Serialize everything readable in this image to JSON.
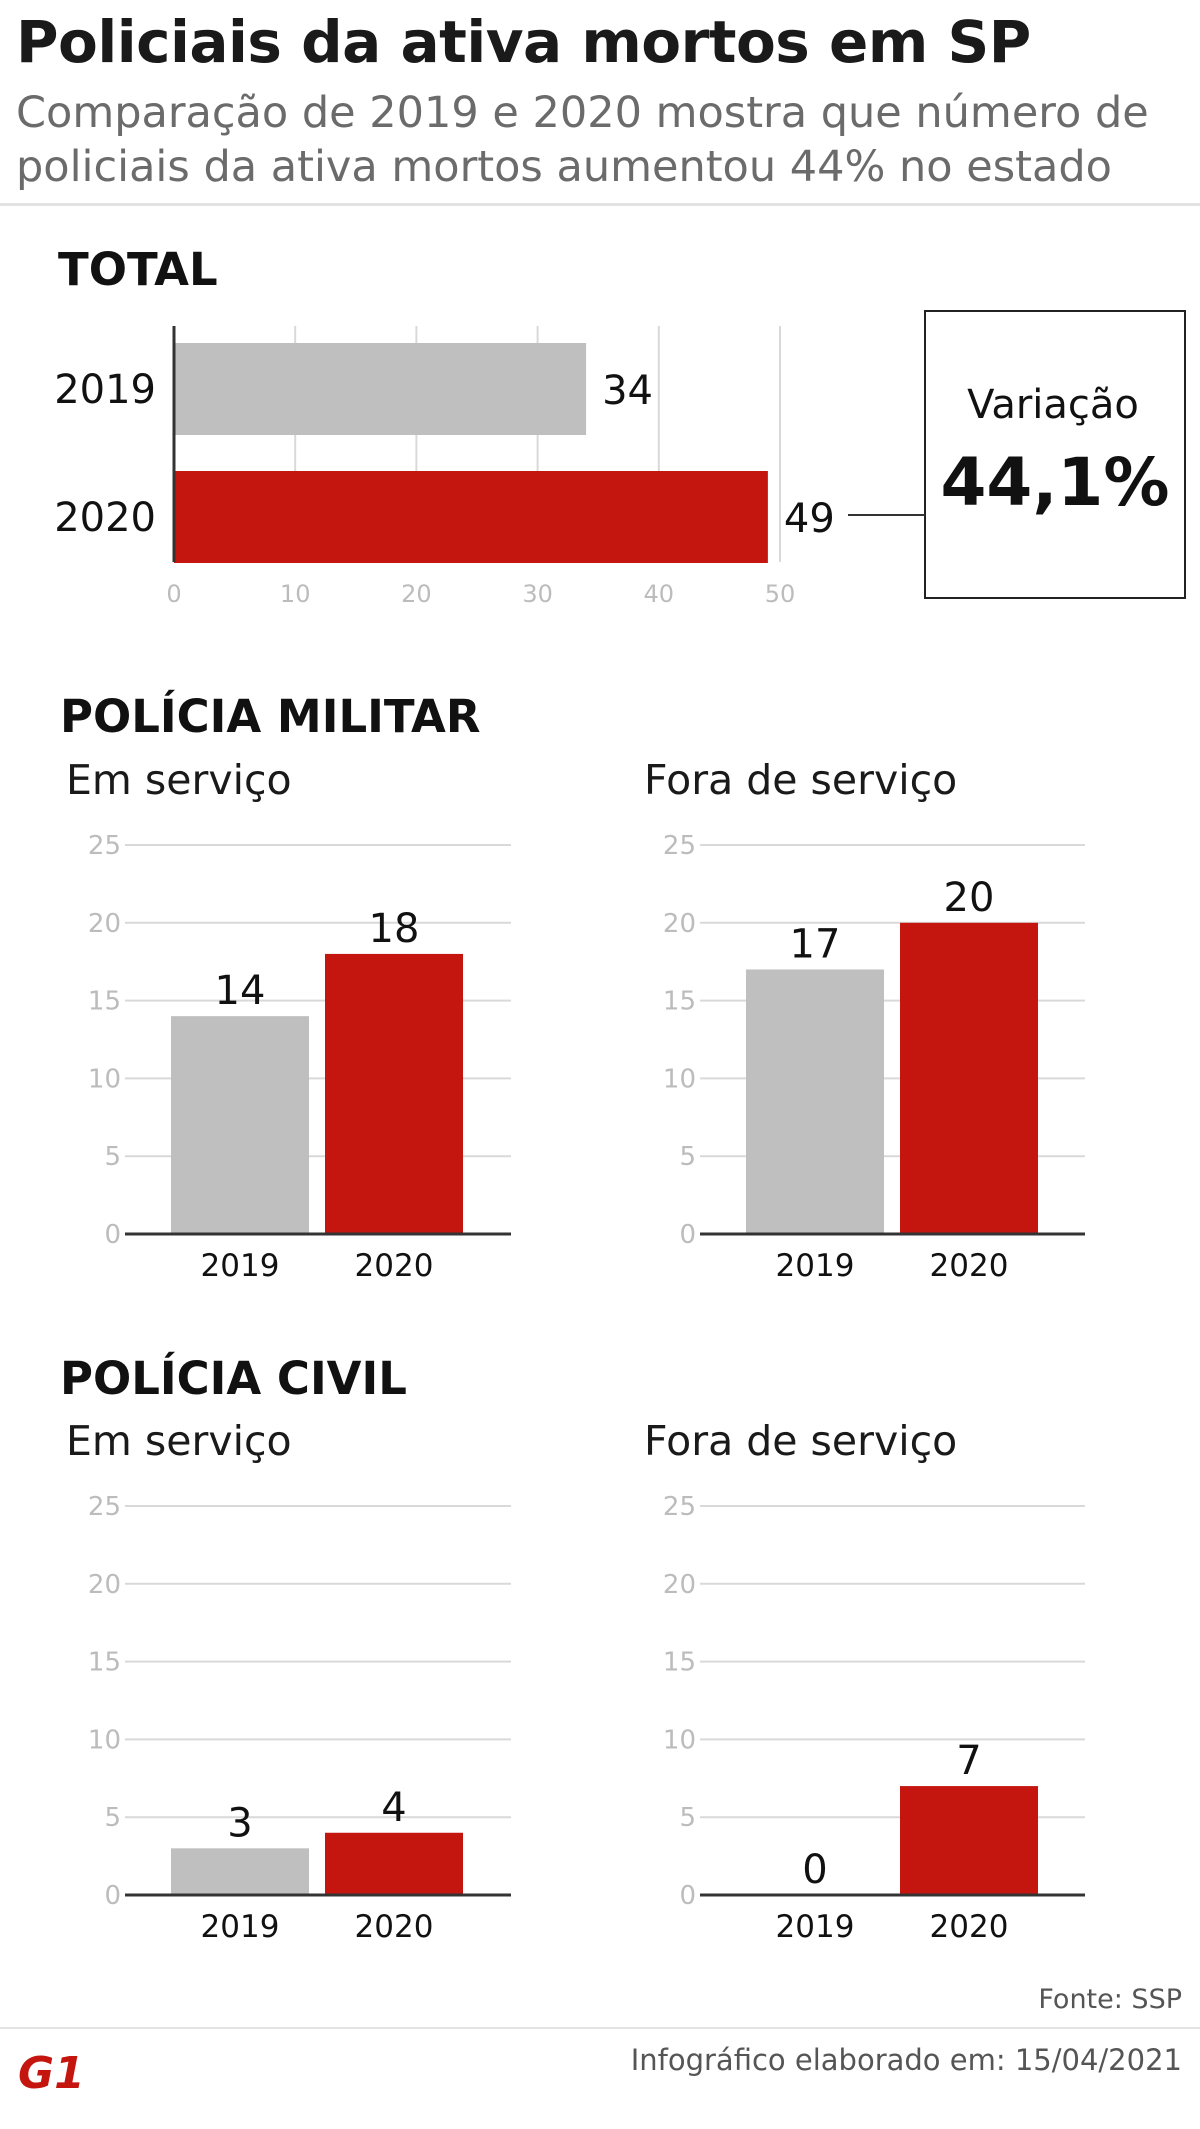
{
  "header": {
    "title": "Policiais da ativa mortos em SP",
    "subtitle": "Comparação de 2019 e 2020 mostra que número de policiais da ativa mortos aumentou 44% no estado"
  },
  "variation": {
    "label": "Variação",
    "value": "44,1%"
  },
  "sections": {
    "total": "TOTAL",
    "pm": "POLÍCIA MILITAR",
    "pc": "POLÍCIA CIVIL",
    "em_servico": "Em serviço",
    "fora_servico": "Fora de serviço"
  },
  "colors": {
    "y2019": "#bfbfbf",
    "y2020": "#c4160f",
    "grid": "#d9d9d9",
    "tick": "#bcbcbc"
  },
  "chart_data": [
    {
      "id": "total",
      "type": "bar",
      "orientation": "horizontal",
      "title": "TOTAL",
      "categories": [
        "2019",
        "2020"
      ],
      "values": [
        34,
        49
      ],
      "xlim": [
        0,
        50
      ],
      "xticks": [
        0,
        10,
        20,
        30,
        40,
        50
      ]
    },
    {
      "id": "pm_em",
      "type": "bar",
      "title": "POLÍCIA MILITAR — Em serviço",
      "categories": [
        "2019",
        "2020"
      ],
      "values": [
        14,
        18
      ],
      "ylim": [
        0,
        25
      ],
      "yticks": [
        0,
        5,
        10,
        15,
        20,
        25
      ]
    },
    {
      "id": "pm_fora",
      "type": "bar",
      "title": "POLÍCIA MILITAR — Fora de serviço",
      "categories": [
        "2019",
        "2020"
      ],
      "values": [
        17,
        20
      ],
      "ylim": [
        0,
        25
      ],
      "yticks": [
        0,
        5,
        10,
        15,
        20,
        25
      ]
    },
    {
      "id": "pc_em",
      "type": "bar",
      "title": "POLÍCIA CIVIL — Em serviço",
      "categories": [
        "2019",
        "2020"
      ],
      "values": [
        3,
        4
      ],
      "ylim": [
        0,
        25
      ],
      "yticks": [
        0,
        5,
        10,
        15,
        20,
        25
      ]
    },
    {
      "id": "pc_fora",
      "type": "bar",
      "title": "POLÍCIA CIVIL — Fora de serviço",
      "categories": [
        "2019",
        "2020"
      ],
      "values": [
        0,
        7
      ],
      "ylim": [
        0,
        25
      ],
      "yticks": [
        0,
        5,
        10,
        15,
        20,
        25
      ]
    }
  ],
  "footer": {
    "source": "Fonte: SSP",
    "note": "Infográfico elaborado em: 15/04/2021",
    "logo": "G1"
  }
}
